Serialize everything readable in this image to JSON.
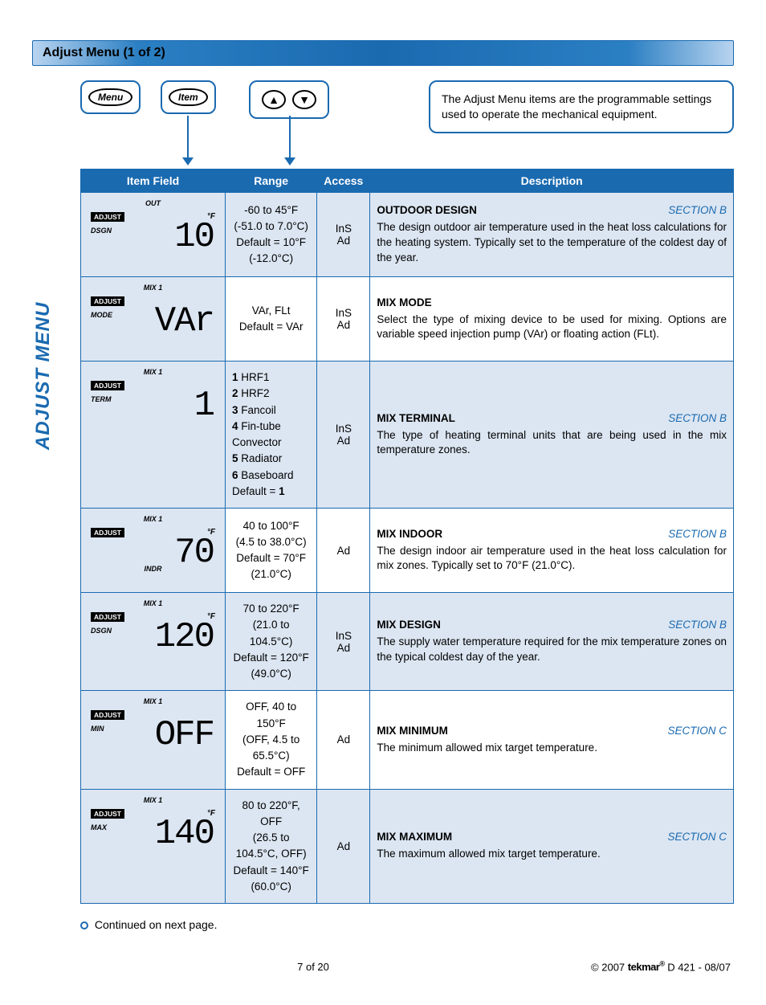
{
  "title": "Adjust Menu (1 of 2)",
  "side_label": "ADJUST MENU",
  "buttons": {
    "menu": "Menu",
    "item": "Item",
    "up": "▲",
    "down": "▼"
  },
  "info": "The Adjust Menu items are the programmable settings used to operate the mechanical equipment.",
  "headers": {
    "item": "Item Field",
    "range": "Range",
    "access": "Access",
    "desc": "Description"
  },
  "rows": [
    {
      "lcd": {
        "top": "OUT",
        "adjust": "ADJUST",
        "sub": "DSGN",
        "val": "10",
        "unit": "°F"
      },
      "range": "-60 to 45°F\n(-51.0 to 7.0°C)\nDefault = 10°F\n(-12.0°C)",
      "access": "InS\nAd",
      "desc_title": "OUTDOOR DESIGN",
      "section": "SECTION B",
      "desc": "The design outdoor air temperature used in the heat loss calculations for the heating system. Typically set to the temperature of the coldest day of the year."
    },
    {
      "lcd": {
        "top": "MIX 1",
        "adjust": "ADJUST",
        "sub": "MODE",
        "val": "VAr",
        "unit": ""
      },
      "range": "VAr, FLt\nDefault = VAr",
      "access": "InS\nAd",
      "desc_title": "MIX MODE",
      "section": "",
      "desc": "Select the type of mixing device to be used for mixing. Options are variable speed injection pump (VAr) or floating action (FLt)."
    },
    {
      "lcd": {
        "top": "MIX 1",
        "adjust": "ADJUST",
        "sub": "TERM",
        "val": "1",
        "unit": ""
      },
      "range_html": "<b>1</b> HRF1<br><b>2</b> HRF2<br><b>3</b> Fancoil<br><b>4</b> Fin-tube Convector<br><b>5</b> Radiator<br><b>6</b> Baseboard<br>Default = <b>1</b>",
      "access": "InS\nAd",
      "desc_title": "MIX TERMINAL",
      "section": "SECTION B",
      "desc": "The type of heating terminal units that are being used in the mix temperature zones."
    },
    {
      "lcd": {
        "top": "MIX 1",
        "adjust": "ADJUST",
        "sub": "INDR",
        "val": "70",
        "unit": "°F",
        "sub_center": true
      },
      "range": "40 to 100°F\n(4.5 to 38.0°C)\nDefault = 70°F (21.0°C)",
      "access": "Ad",
      "desc_title": "MIX INDOOR",
      "section": "SECTION B",
      "desc": "The design indoor air temperature used in the heat loss calculation for mix zones. Typically set to 70°F (21.0°C)."
    },
    {
      "lcd": {
        "top": "MIX 1",
        "adjust": "ADJUST",
        "sub": "DSGN",
        "val": "120",
        "unit": "°F"
      },
      "range": "70 to 220°F\n(21.0 to 104.5°C)\nDefault = 120°F\n(49.0°C)",
      "access": "InS\nAd",
      "desc_title": "MIX DESIGN",
      "section": "SECTION B",
      "desc": "The supply water temperature required for the mix temperature zones on the typical coldest day of the year."
    },
    {
      "lcd": {
        "top": "MIX 1",
        "adjust": "ADJUST",
        "sub": "MIN",
        "val": "OFF",
        "unit": ""
      },
      "range": "OFF, 40 to 150°F\n(OFF, 4.5 to 65.5°C)\nDefault = OFF",
      "access": "Ad",
      "desc_title": "MIX MINIMUM",
      "section": "SECTION C",
      "desc": "The minimum allowed mix target temperature."
    },
    {
      "lcd": {
        "top": "MIX 1",
        "adjust": "ADJUST",
        "sub": "MAX",
        "val": "140",
        "unit": "°F"
      },
      "range": "80 to 220°F, OFF\n(26.5 to 104.5°C, OFF)\nDefault = 140°F\n(60.0°C)",
      "access": "Ad",
      "desc_title": "MIX MAXIMUM",
      "section": "SECTION C",
      "desc": "The maximum allowed mix target temperature."
    }
  ],
  "continued": "Continued on next page.",
  "footer": {
    "page": "7 of 20",
    "copyright": "© 2007",
    "brand": "tekmar",
    "doc": "D 421 - 08/07"
  }
}
